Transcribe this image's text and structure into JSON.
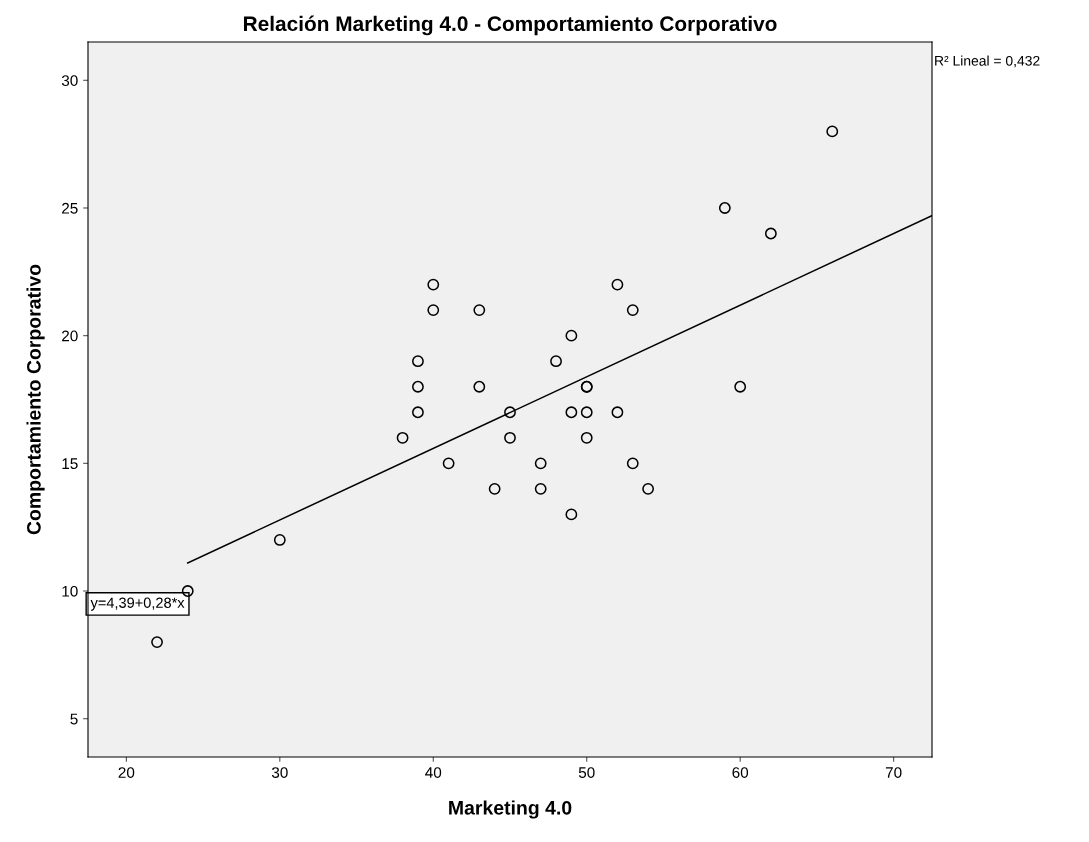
{
  "chart_data": {
    "type": "scatter",
    "title": "Relación Marketing 4.0 - Comportamiento Corporativo",
    "xlabel": "Marketing 4.0",
    "ylabel": "Comportamiento Corporativo",
    "xlim": [
      17.5,
      72.5
    ],
    "xticks": [
      20,
      30,
      40,
      50,
      60,
      70
    ],
    "ylim": [
      3.5,
      31.5
    ],
    "yticks": [
      5,
      10,
      15,
      20,
      25,
      30
    ],
    "grid": false,
    "legend": false,
    "series": [
      {
        "color": "#000000",
        "marker": "circle",
        "x": [
          22,
          24,
          30,
          38,
          39,
          39,
          39,
          40,
          40,
          41,
          43,
          43,
          44,
          45,
          45,
          47,
          47,
          48,
          49,
          49,
          49,
          50,
          50,
          50,
          50,
          52,
          52,
          53,
          53,
          54,
          59,
          60,
          62,
          66
        ],
        "values": [
          8,
          10,
          12,
          16,
          19,
          18,
          17,
          22,
          21,
          15,
          21,
          18,
          14,
          17,
          16,
          15,
          14,
          19,
          20,
          17,
          13,
          18,
          18,
          17,
          16,
          22,
          17,
          21,
          15,
          14,
          25,
          18,
          24,
          28
        ]
      },
      {
        "type": "line",
        "color": "#000000",
        "x": [
          24,
          72.5
        ],
        "values": [
          11.1,
          24.7
        ]
      }
    ],
    "annotations": [
      "y=4,39+0,28*x",
      "R² Lineal = 0,432"
    ]
  }
}
